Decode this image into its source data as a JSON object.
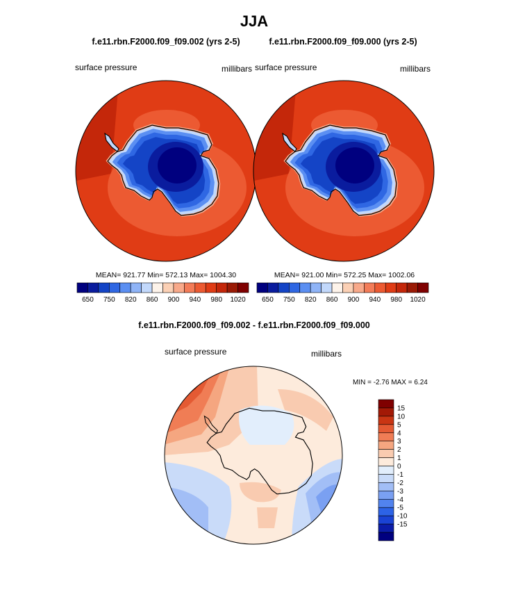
{
  "header": {
    "season": "JJA",
    "case_left": "f.e11.rbn.F2000.f09_f09.002 (yrs 2-5)",
    "case_right": "f.e11.rbn.F2000.f09_f09.000 (yrs 2-5)"
  },
  "colors": {
    "abs_scale": [
      "#00007f",
      "#0a1c9e",
      "#1444c6",
      "#2f67e3",
      "#5b8ff2",
      "#8fb4f7",
      "#c2d8fb",
      "#fdf3ea",
      "#fbd0b5",
      "#f8a98a",
      "#f37c58",
      "#ec5a32",
      "#e03c15",
      "#c4270a",
      "#9a1a05",
      "#7f0000"
    ],
    "diff_scale": [
      "#00007f",
      "#0b1ca8",
      "#1a43d4",
      "#2d63e6",
      "#5283ee",
      "#7aa0f2",
      "#a2bef6",
      "#c9dbf9",
      "#e2eefc",
      "#fdebdc",
      "#f9cbb0",
      "#f5a680",
      "#f07d55",
      "#e45a33",
      "#c93513",
      "#a31906",
      "#7f0000"
    ],
    "land_outline": "#000000"
  },
  "panels": {
    "left": {
      "var_label": "surface pressure",
      "units": "millibars",
      "stats": "MEAN= 921.77  Min= 572.13  Max= 1004.30"
    },
    "right": {
      "var_label": "surface pressure",
      "units": "millibars",
      "stats": "MEAN= 921.00  Min= 572.25  Max= 1002.06"
    },
    "diff": {
      "title": "f.e11.rbn.F2000.f09_f09.002 - f.e11.rbn.F2000.f09_f09.000",
      "var_label": "surface pressure",
      "units": "millibars",
      "stats": "MIN =  -2.76 MAX =   6.24"
    }
  },
  "chart_data": [
    {
      "type": "heatmap",
      "projection": "south polar stereographic",
      "variable": "surface pressure",
      "units": "millibars",
      "stats": {
        "mean": 921.77,
        "min": 572.13,
        "max": 1004.3
      },
      "colorbar_ticks": [
        "650",
        "750",
        "820",
        "860",
        "900",
        "940",
        "980",
        "1020"
      ],
      "colorbar_levels": 15
    },
    {
      "type": "heatmap",
      "projection": "south polar stereographic",
      "variable": "surface pressure",
      "units": "millibars",
      "stats": {
        "mean": 921.0,
        "min": 572.25,
        "max": 1002.06
      },
      "colorbar_ticks": [
        "650",
        "750",
        "820",
        "860",
        "900",
        "940",
        "980",
        "1020"
      ],
      "colorbar_levels": 15
    },
    {
      "type": "heatmap",
      "projection": "south polar stereographic",
      "variable": "surface pressure",
      "units": "millibars",
      "stats": {
        "min": -2.76,
        "max": 6.24
      },
      "colorbar_ticks": [
        "15",
        "10",
        "5",
        "4",
        "3",
        "2",
        "1",
        "0",
        "-1",
        "-2",
        "-3",
        "-4",
        "-5",
        "-10",
        "-15"
      ]
    }
  ]
}
